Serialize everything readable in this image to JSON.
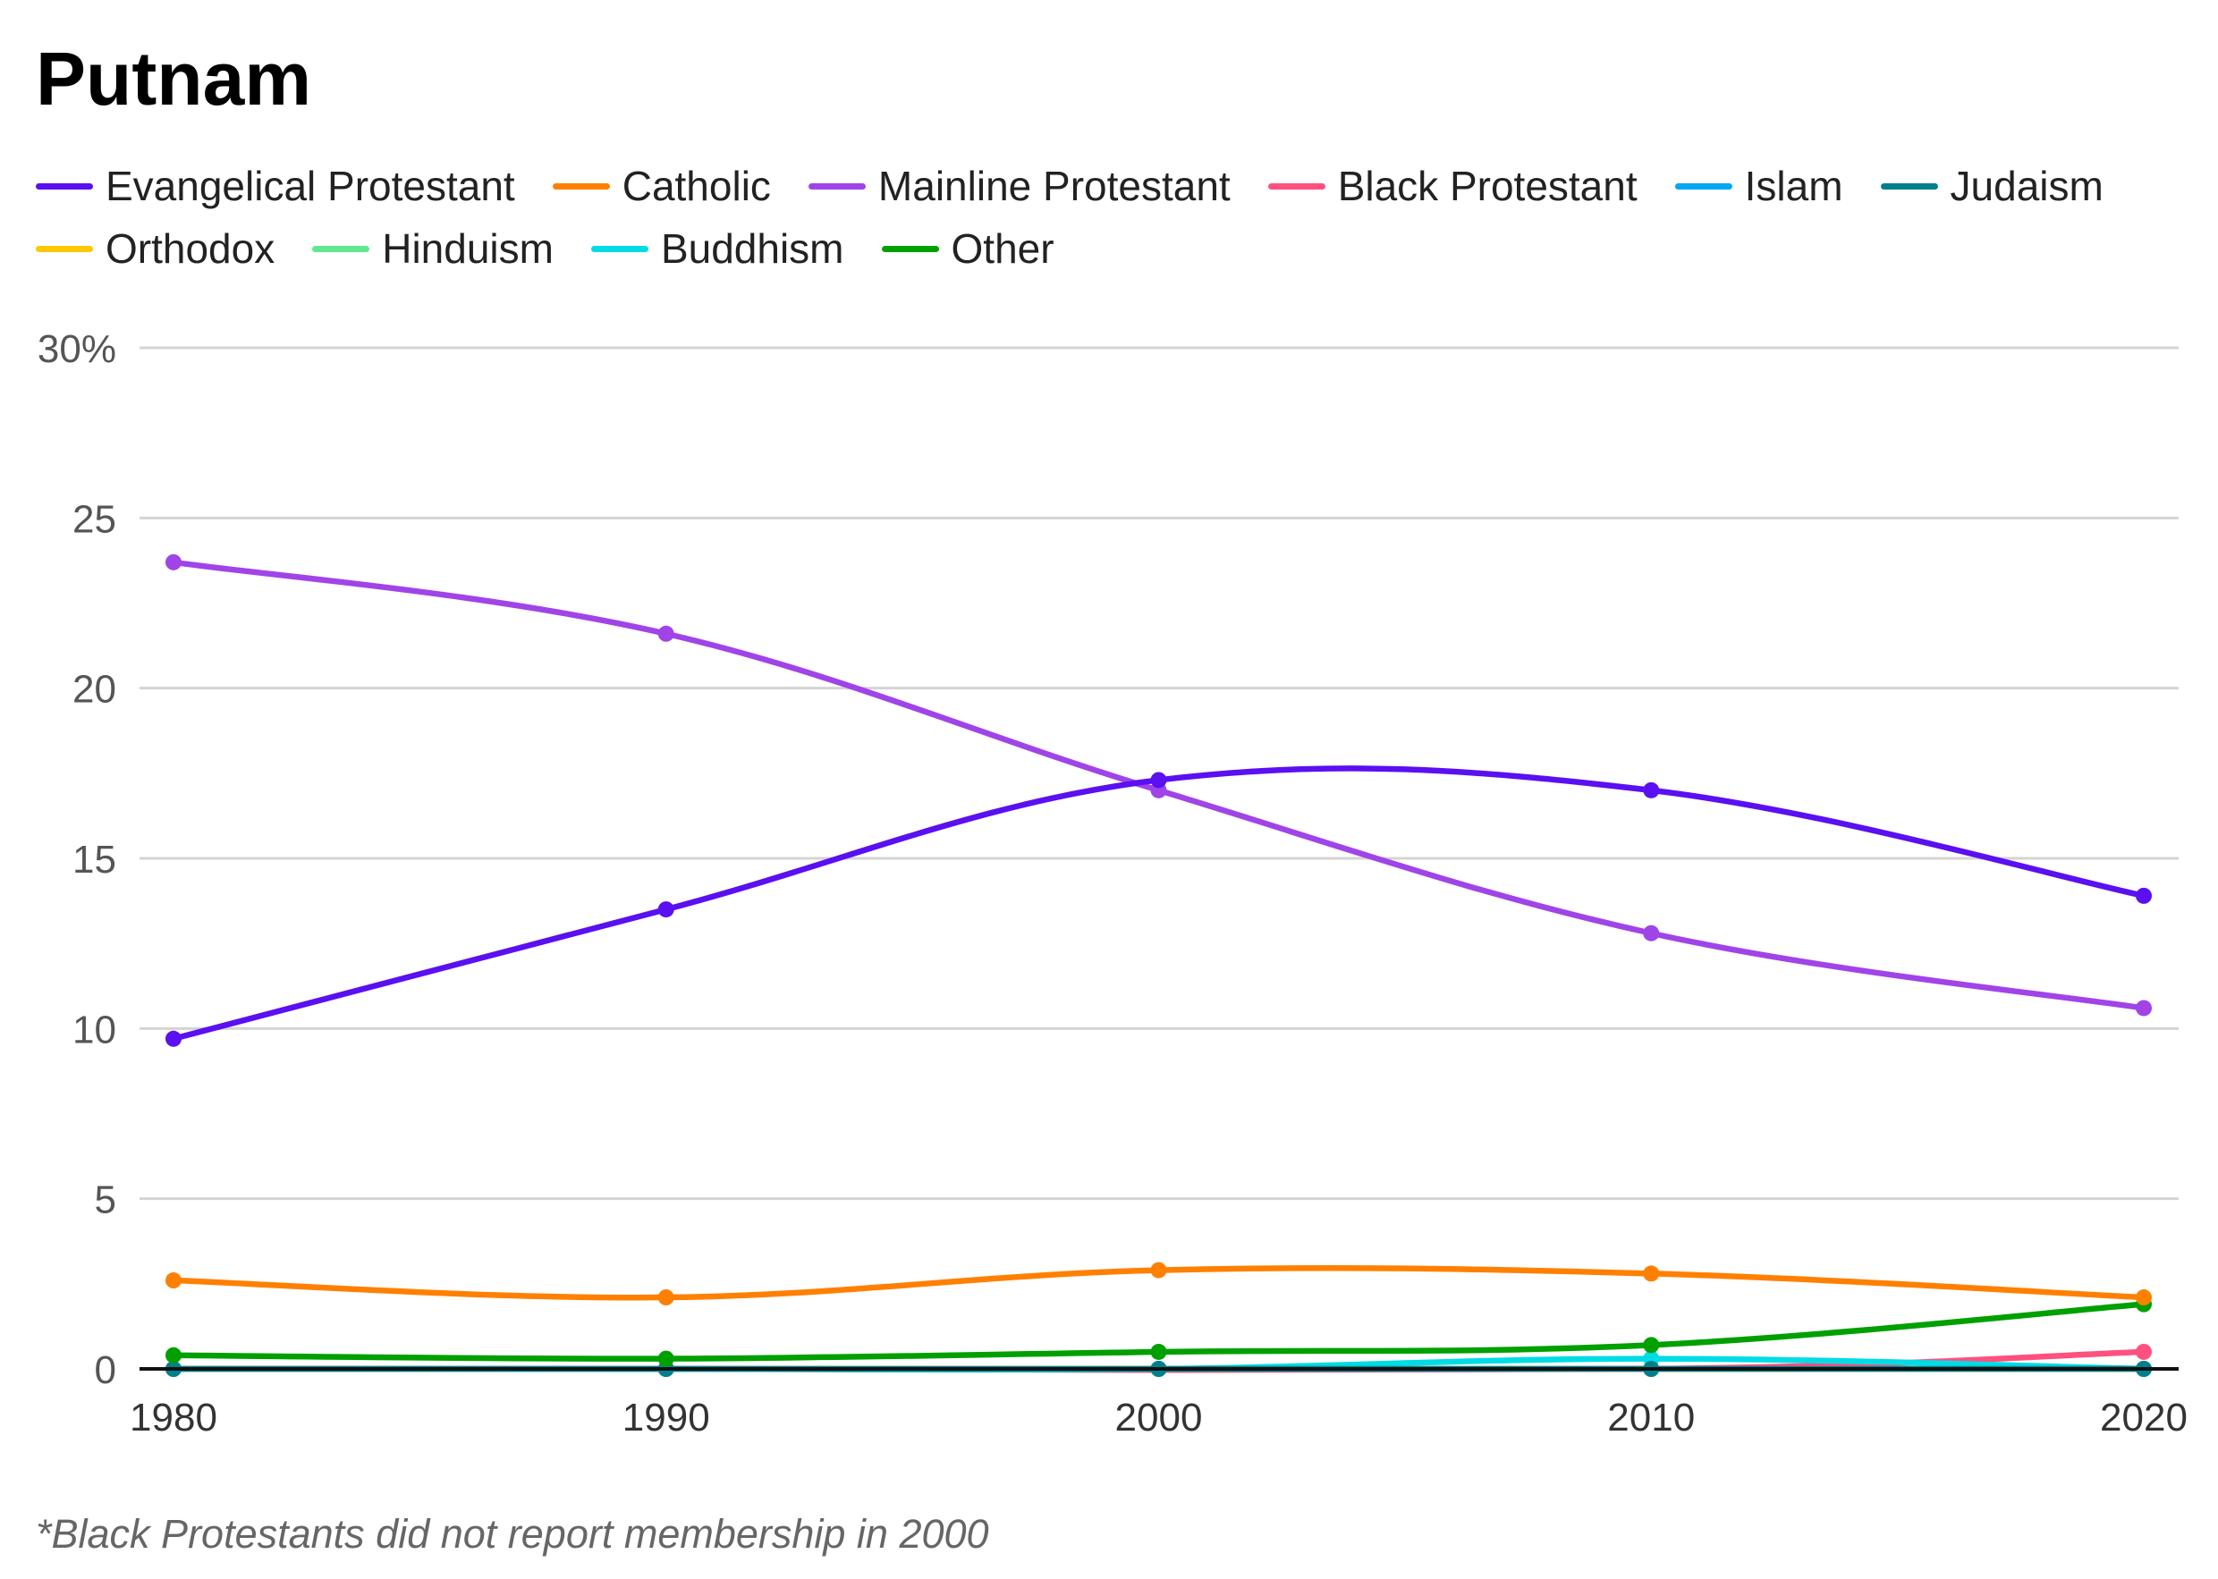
{
  "chart_data": {
    "type": "line",
    "title": "Putnam",
    "x": [
      1980,
      1990,
      2000,
      2010,
      2020
    ],
    "xlabel": "",
    "ylabel": "",
    "ylim": [
      0,
      30
    ],
    "yticks": [
      0,
      5,
      10,
      15,
      20,
      25,
      30
    ],
    "ytick_labels": [
      "0",
      "5",
      "10",
      "15",
      "20",
      "25",
      "30%"
    ],
    "xtick_labels": [
      "1980",
      "1990",
      "2000",
      "2010",
      "2020"
    ],
    "grid": true,
    "legend": "top",
    "series": [
      {
        "name": "Evangelical Protestant",
        "color": "#5a10f0",
        "values": [
          9.7,
          13.5,
          17.3,
          17.0,
          13.9
        ]
      },
      {
        "name": "Catholic",
        "color": "#ff8000",
        "values": [
          2.6,
          2.1,
          2.9,
          2.8,
          2.1
        ]
      },
      {
        "name": "Mainline Protestant",
        "color": "#a044e8",
        "values": [
          23.7,
          21.6,
          17.0,
          12.8,
          10.6
        ]
      },
      {
        "name": "Black Protestant",
        "color": "#ff5080",
        "values": [
          0,
          0,
          null,
          0,
          0.5
        ]
      },
      {
        "name": "Islam",
        "color": "#00a8f0",
        "values": [
          0,
          0,
          0,
          0,
          0
        ]
      },
      {
        "name": "Judaism",
        "color": "#00808c",
        "values": [
          0,
          0,
          0,
          0,
          0
        ]
      },
      {
        "name": "Orthodox",
        "color": "#ffc800",
        "values": [
          0,
          0,
          0,
          0,
          0
        ]
      },
      {
        "name": "Hinduism",
        "color": "#60e890",
        "values": [
          0,
          0,
          0,
          0,
          0
        ]
      },
      {
        "name": "Buddhism",
        "color": "#00dce6",
        "values": [
          0,
          0,
          0,
          0.3,
          0
        ]
      },
      {
        "name": "Other",
        "color": "#00a000",
        "values": [
          0.4,
          0.3,
          0.5,
          0.7,
          1.9
        ]
      }
    ],
    "footnote": "*Black Protestants did not report membership in 2000"
  }
}
